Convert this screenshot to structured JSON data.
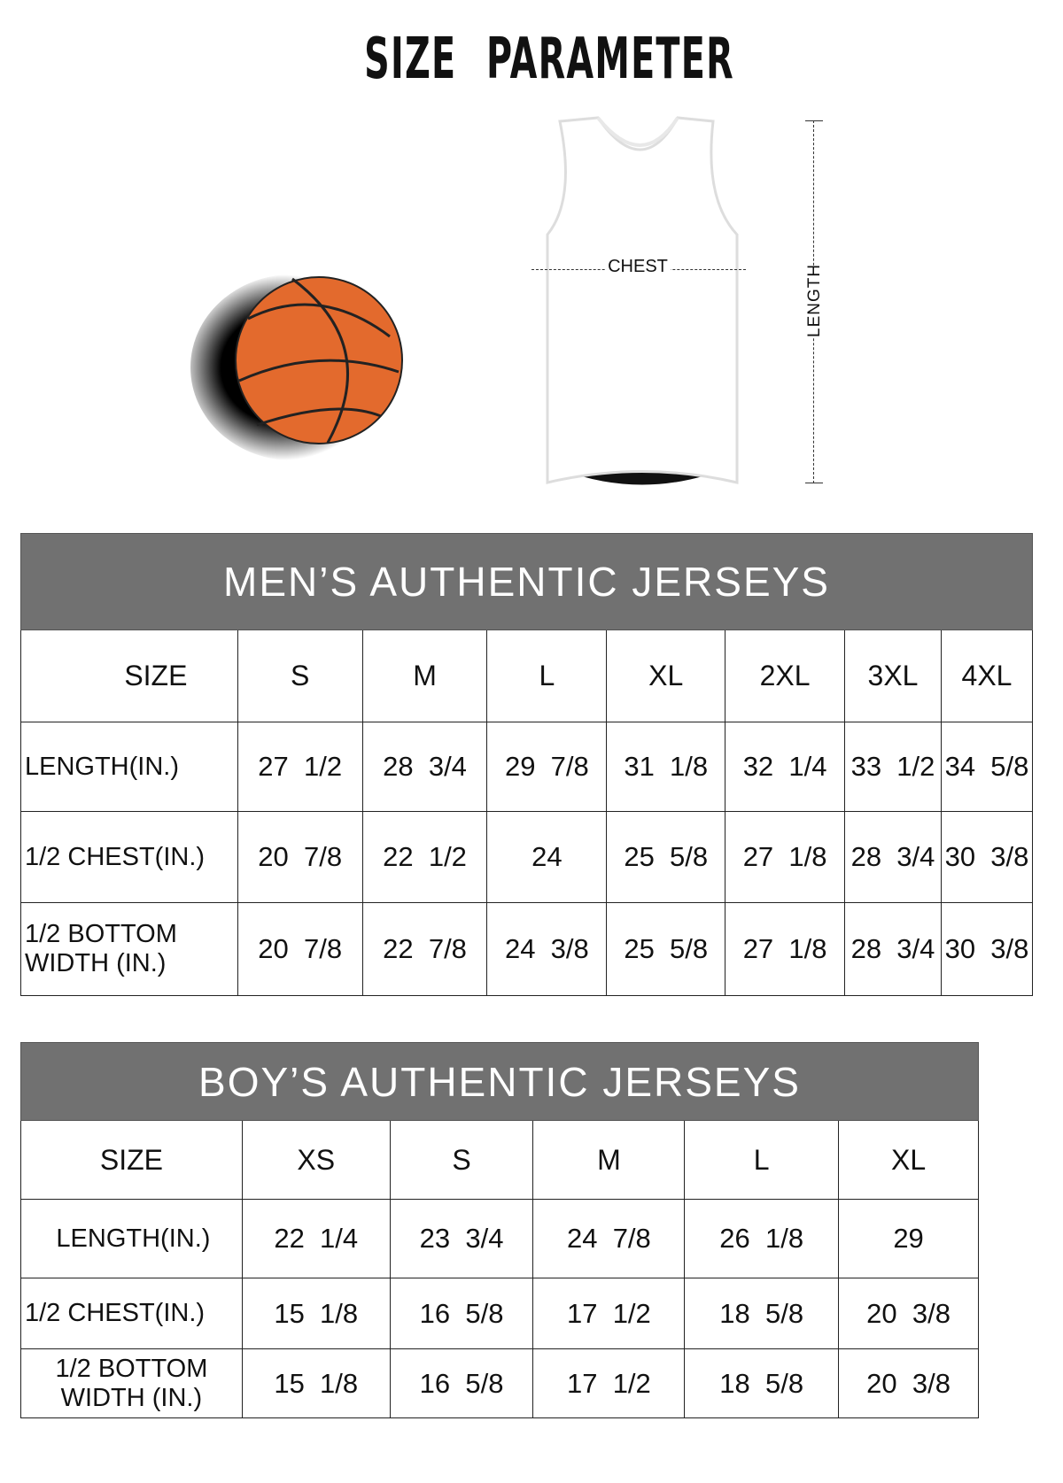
{
  "title": "SIZE PARAMETER",
  "diagram": {
    "chest_label": "CHEST",
    "length_label": "LENGTH",
    "ball_color": "#e36a2d"
  },
  "mens": {
    "heading": "MEN’S AUTHENTIC JERSEYS",
    "size_label": "SIZE",
    "sizes": [
      "S",
      "M",
      "L",
      "XL",
      "2XL",
      "3XL",
      "4XL"
    ],
    "rows": [
      {
        "label": "LENGTH(IN.)",
        "values": [
          "27  1/2",
          "28  3/4",
          "29  7/8",
          "31  1/8",
          "32  1/4",
          "33  1/2",
          "34  5/8"
        ]
      },
      {
        "label": "1/2 CHEST(IN.)",
        "values": [
          "20  7/8",
          "22  1/2",
          "24",
          "25  5/8",
          "27  1/8",
          "28  3/4",
          "30  3/8"
        ]
      },
      {
        "label": "1/2 BOTTOM WIDTH (IN.)",
        "values": [
          "20  7/8",
          "22  7/8",
          "24  3/8",
          "25  5/8",
          "27  1/8",
          "28  3/4",
          "30  3/8"
        ]
      }
    ]
  },
  "boys": {
    "heading": "BOY’S AUTHENTIC JERSEYS",
    "size_label": "SIZE",
    "sizes": [
      "XS",
      "S",
      "M",
      "L",
      "XL"
    ],
    "rows": [
      {
        "label": "LENGTH(IN.)",
        "values": [
          "22  1/4",
          "23  3/4",
          "24  7/8",
          "26  1/8",
          "29"
        ]
      },
      {
        "label": "1/2 CHEST(IN.)",
        "values": [
          "15  1/8",
          "16  5/8",
          "17  1/2",
          "18  5/8",
          "20  3/8"
        ]
      },
      {
        "label": "1/2 BOTTOM WIDTH (IN.)",
        "values": [
          "15  1/8",
          "16  5/8",
          "17  1/2",
          "18  5/8",
          "20  3/8"
        ]
      }
    ]
  },
  "header_color": "#717171"
}
